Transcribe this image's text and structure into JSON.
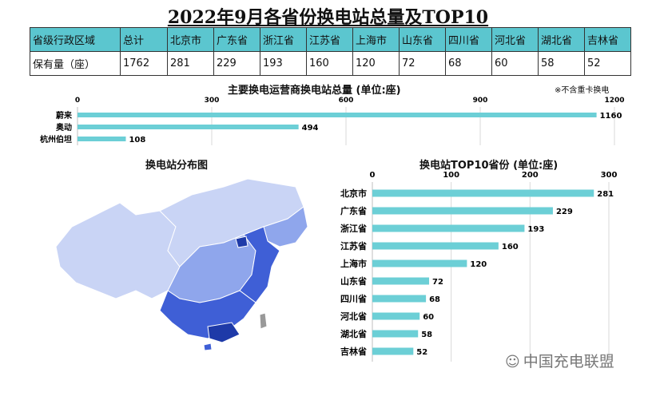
{
  "title": "2022年9月各省份换电站总量及TOP10",
  "table": {
    "headers": [
      "省级行政区域",
      "总计",
      "北京市",
      "广东省",
      "浙江省",
      "江苏省",
      "上海市",
      "山东省",
      "四川省",
      "河北省",
      "湖北省",
      "吉林省"
    ],
    "values": [
      "保有量（座）",
      "1762",
      "281",
      "229",
      "193",
      "160",
      "120",
      "72",
      "68",
      "60",
      "58",
      "52"
    ]
  },
  "operators": {
    "title": "主要换电运营商换电站总量 (单位:座)",
    "note": "※不含重卡换电"
  },
  "map": {
    "title": "换电站分布图"
  },
  "top10": {
    "title": "换电站TOP10省份 (单位:座)"
  },
  "watermark": "中国充电联盟",
  "colors": {
    "bar": "#6ccfd6",
    "header": "#5bc6cf",
    "map_light": "#c9d4f5",
    "map_mid": "#8fa6ec",
    "map_dark": "#3f5fd6",
    "map_darkest": "#1e3aa8"
  },
  "chart_data": [
    {
      "type": "bar",
      "orientation": "horizontal",
      "categories": [
        "蔚来",
        "奥动",
        "杭州伯坦"
      ],
      "values": [
        1160,
        494,
        108
      ],
      "xlim": [
        0,
        1200
      ],
      "xticks": [
        0,
        300,
        600,
        900,
        1200
      ],
      "grid": true
    },
    {
      "type": "bar",
      "orientation": "horizontal",
      "categories": [
        "北京市",
        "广东省",
        "浙江省",
        "江苏省",
        "上海市",
        "山东省",
        "四川省",
        "河北省",
        "湖北省",
        "吉林省"
      ],
      "values": [
        281,
        229,
        193,
        160,
        120,
        72,
        68,
        60,
        58,
        52
      ],
      "xlim": [
        0,
        300
      ],
      "xticks": [
        0,
        100,
        200,
        300
      ],
      "grid": true
    }
  ]
}
